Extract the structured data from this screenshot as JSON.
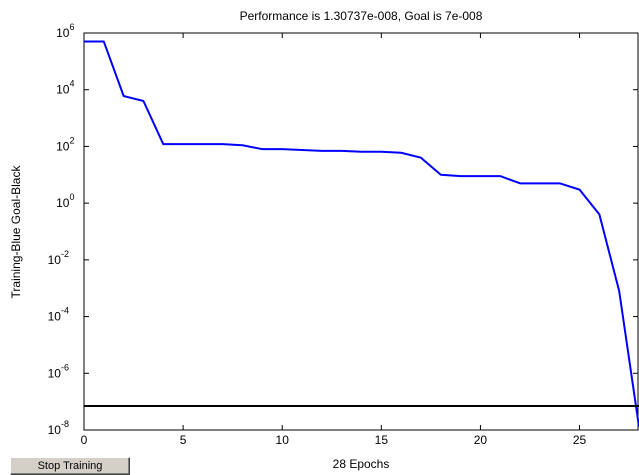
{
  "chart_data": {
    "type": "line",
    "title": "Performance is 1.30737e-008, Goal is 7e-008",
    "xlabel": "28 Epochs",
    "ylabel": "Training-Blue  Goal-Black",
    "xlim": [
      0,
      28
    ],
    "ylim_log10": [
      -8,
      6
    ],
    "y_scale": "log",
    "x_ticks": [
      0,
      5,
      10,
      15,
      20,
      25
    ],
    "y_tick_labels": [
      {
        "base": "10",
        "exp": "6"
      },
      {
        "base": "10",
        "exp": "4"
      },
      {
        "base": "10",
        "exp": "2"
      },
      {
        "base": "10",
        "exp": "0"
      },
      {
        "base": "10",
        "exp": "-2"
      },
      {
        "base": "10",
        "exp": "-4"
      },
      {
        "base": "10",
        "exp": "-6"
      },
      {
        "base": "10",
        "exp": "-8"
      }
    ],
    "grid": false,
    "series": [
      {
        "color": "#0000ff",
        "x": [
          0,
          1,
          2,
          3,
          4,
          5,
          6,
          7,
          8,
          9,
          10,
          11,
          12,
          13,
          14,
          15,
          16,
          17,
          18,
          19,
          20,
          21,
          22,
          23,
          24,
          25,
          26,
          27,
          28
        ],
        "y": [
          500000.0,
          500000.0,
          6000.0,
          4000.0,
          120,
          120,
          120,
          120,
          110,
          80,
          80,
          75,
          70,
          70,
          65,
          65,
          60,
          40,
          10,
          9,
          9,
          9,
          5,
          5,
          5,
          3,
          0.4,
          0.0008,
          1.30737e-08
        ]
      },
      {
        "color": "#000000",
        "x": [
          0,
          28
        ],
        "y": [
          7e-08,
          7e-08
        ]
      }
    ]
  },
  "controls": {
    "stop_training_label": "Stop Training"
  }
}
